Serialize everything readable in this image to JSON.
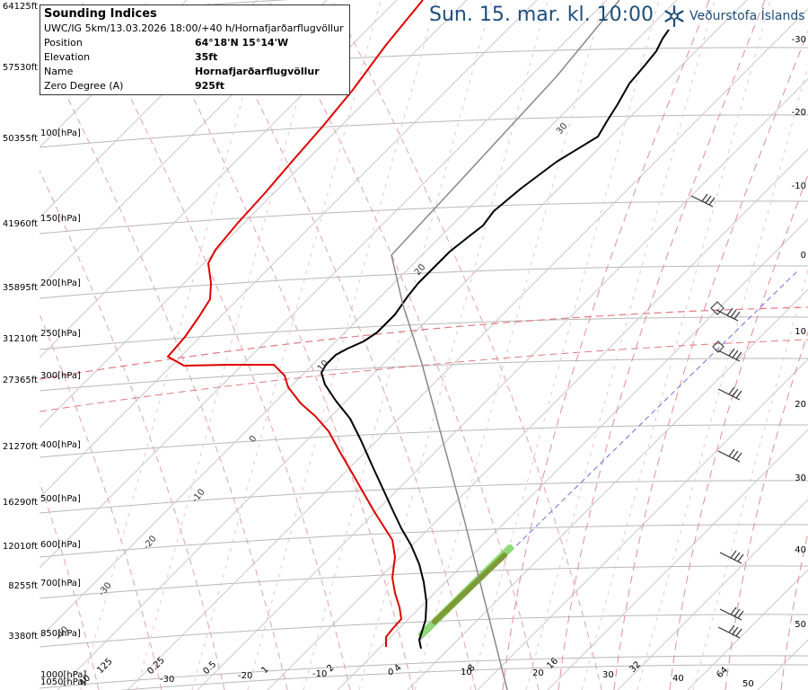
{
  "header": {
    "date_title": "Sun. 15. mar. kl. 10:00"
  },
  "logo": {
    "brand": "Veðurstofa Íslands",
    "icon": "snowflake-logo-icon"
  },
  "indices": {
    "title": "Sounding Indices",
    "model_run": "UWC/IG 5km/13.03.2026 18:00/+40 h/Hornafjarðarflugvöllur",
    "rows": [
      {
        "label": "Position",
        "value": "64°18'N 15°14'W"
      },
      {
        "label": "Elevation",
        "value": "35ft"
      },
      {
        "label": "Name",
        "value": "Hornafjarðarflugvöllur"
      },
      {
        "label": "Zero Degree (A)",
        "value": "925ft"
      }
    ]
  },
  "chart_data": {
    "type": "line",
    "title": "",
    "xlabel": "",
    "ylabel": "",
    "y_axis": [
      {
        "pressure": "1050[hPa]",
        "height": ""
      },
      {
        "pressure": "1000[hPa]",
        "height": ""
      },
      {
        "pressure": "850[hPa]",
        "height": "3380ft"
      },
      {
        "pressure": "700[hPa]",
        "height": "8255ft"
      },
      {
        "pressure": "600[hPa]",
        "height": "12010ft"
      },
      {
        "pressure": "500[hPa]",
        "height": "16290ft"
      },
      {
        "pressure": "400[hPa]",
        "height": "21270ft"
      },
      {
        "pressure": "300[hPa]",
        "height": "27365ft"
      },
      {
        "pressure": "250[hPa]",
        "height": "31210ft"
      },
      {
        "pressure": "200[hPa]",
        "height": "35895ft"
      },
      {
        "pressure": "150[hPa]",
        "height": "41960ft"
      },
      {
        "pressure": "100[hPa]",
        "height": "50355ft"
      },
      {
        "pressure": "",
        "height": "57530ft"
      },
      {
        "pressure": "",
        "height": "64125ft"
      }
    ],
    "bottom_ticks": [
      "40",
      "125",
      "0.25",
      "-30",
      "0.5",
      "-20",
      "1",
      "-10",
      "2",
      "0",
      "4",
      "10",
      "8",
      "20",
      "16",
      "30",
      "32",
      "40",
      "64",
      "50"
    ],
    "right_ticks": [
      "-30",
      "-20",
      "-10",
      "0",
      "10",
      "20",
      "30",
      "40",
      "50"
    ],
    "isotherm_labels": [
      "30",
      "20",
      "10",
      "0",
      "-10",
      "-20",
      "-30",
      "-40"
    ],
    "series": [
      {
        "role": "temperature",
        "color": "#000000",
        "points": [
          [
            469,
            722
          ],
          [
            467,
            712
          ],
          [
            470,
            703
          ],
          [
            474,
            690
          ],
          [
            475,
            670
          ],
          [
            472,
            648
          ],
          [
            467,
            628
          ],
          [
            458,
            607
          ],
          [
            447,
            588
          ],
          [
            437,
            567
          ],
          [
            426,
            543
          ],
          [
            414,
            517
          ],
          [
            402,
            490
          ],
          [
            390,
            466
          ],
          [
            374,
            446
          ],
          [
            362,
            428
          ],
          [
            358,
            415
          ],
          [
            363,
            406
          ],
          [
            374,
            395
          ],
          [
            387,
            388
          ],
          [
            405,
            380
          ],
          [
            420,
            370
          ],
          [
            440,
            350
          ],
          [
            454,
            330
          ],
          [
            466,
            315
          ],
          [
            481,
            300
          ],
          [
            501,
            280
          ],
          [
            520,
            265
          ],
          [
            538,
            251
          ],
          [
            550,
            235
          ],
          [
            580,
            210
          ],
          [
            620,
            180
          ],
          [
            666,
            152
          ],
          [
            676,
            135
          ],
          [
            688,
            116
          ],
          [
            701,
            93
          ],
          [
            718,
            73
          ],
          [
            731,
            57
          ],
          [
            738,
            43
          ],
          [
            745,
            33
          ]
        ]
      },
      {
        "role": "dewpoint",
        "color": "#dd0000",
        "points": [
          [
            430,
            720
          ],
          [
            430,
            709
          ],
          [
            438,
            699
          ],
          [
            447,
            689
          ],
          [
            445,
            676
          ],
          [
            440,
            660
          ],
          [
            437,
            643
          ],
          [
            440,
            620
          ],
          [
            437,
            601
          ],
          [
            428,
            587
          ],
          [
            416,
            568
          ],
          [
            404,
            547
          ],
          [
            392,
            526
          ],
          [
            378,
            502
          ],
          [
            366,
            480
          ],
          [
            351,
            463
          ],
          [
            335,
            449
          ],
          [
            321,
            431
          ],
          [
            317,
            418
          ],
          [
            305,
            406
          ],
          [
            258,
            406
          ],
          [
            205,
            407
          ],
          [
            187,
            397
          ],
          [
            206,
            375
          ],
          [
            222,
            352
          ],
          [
            234,
            333
          ],
          [
            235,
            315
          ],
          [
            232,
            293
          ],
          [
            240,
            278
          ],
          [
            265,
            248
          ],
          [
            295,
            215
          ],
          [
            325,
            180
          ],
          [
            360,
            140
          ],
          [
            393,
            100
          ],
          [
            430,
            50
          ],
          [
            471,
            0
          ]
        ]
      },
      {
        "role": "parcel",
        "color": "#888888",
        "points": [
          [
            565,
            768
          ],
          [
            518,
            582
          ],
          [
            470,
            405
          ],
          [
            449,
            340
          ],
          [
            436,
            284
          ],
          [
            500,
            215
          ],
          [
            560,
            150
          ],
          [
            620,
            85
          ],
          [
            690,
            0
          ]
        ]
      }
    ],
    "wind_barbs_right": [
      {
        "x": 820,
        "y": 708
      },
      {
        "x": 822,
        "y": 688
      },
      {
        "x": 822,
        "y": 625
      },
      {
        "x": 820,
        "y": 512
      },
      {
        "x": 820,
        "y": 443
      },
      {
        "x": 820,
        "y": 400
      },
      {
        "x": 818,
        "y": 355
      },
      {
        "x": 790,
        "y": 228
      }
    ],
    "grid": true
  }
}
